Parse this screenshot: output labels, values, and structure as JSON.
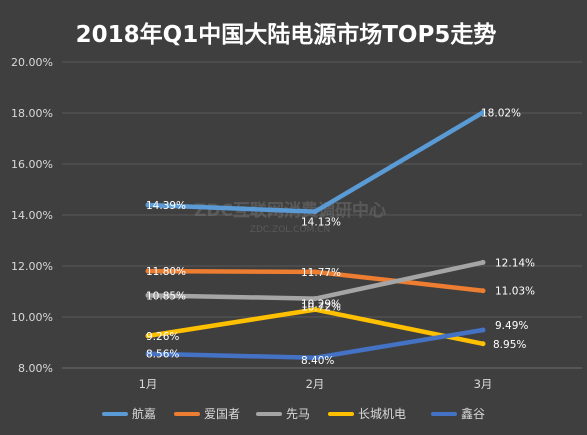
{
  "chart_data": {
    "type": "line",
    "title": "2018年Q1中国大陆电源市场TOP5走势",
    "categories": [
      "1月",
      "2月",
      "3月"
    ],
    "ylim": [
      8,
      20
    ],
    "yticks": [
      "8.00%",
      "10.00%",
      "12.00%",
      "14.00%",
      "16.00%",
      "18.00%",
      "20.00%"
    ],
    "grid": true,
    "legend_position": "bottom",
    "series": [
      {
        "name": "航嘉",
        "color": "#5b9bd5",
        "values": [
          14.39,
          14.13,
          18.02
        ],
        "labels": [
          "14.39%",
          "14.13%",
          "18.02%"
        ]
      },
      {
        "name": "爱国者",
        "color": "#ed7d31",
        "values": [
          11.8,
          11.77,
          11.03
        ],
        "labels": [
          "11.80%",
          "11.77%",
          "11.03%"
        ]
      },
      {
        "name": "先马",
        "color": "#a5a5a5",
        "values": [
          10.85,
          10.72,
          12.14
        ],
        "labels": [
          "10.85%",
          "10.72%",
          "12.14%"
        ]
      },
      {
        "name": "长城机电",
        "color": "#ffc000",
        "values": [
          9.26,
          10.29,
          8.95
        ],
        "labels": [
          "9.26%",
          "10.29%",
          "8.95%"
        ]
      },
      {
        "name": "鑫谷",
        "color": "#4472c4",
        "values": [
          8.56,
          8.4,
          9.49
        ],
        "labels": [
          "8.56%",
          "8.40%",
          "9.49%"
        ]
      }
    ]
  },
  "watermark": {
    "main": "ZDC互联网消费调研中心",
    "sub": "ZDC.ZOL.COM.CN"
  }
}
